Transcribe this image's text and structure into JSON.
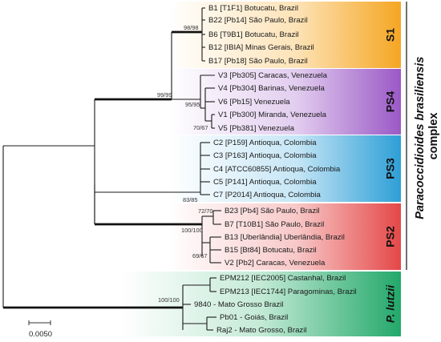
{
  "colors": {
    "S1": "#f5a623",
    "PS4": "#9b59c6",
    "PS3": "#2e9fd6",
    "PS2": "#e44848",
    "P_lutzii": "#23a86a"
  },
  "clades": [
    {
      "id": "S1",
      "label": "S1",
      "label_italic": false,
      "taxa": [
        "B1 [T1F1] Botucatu, Brazil",
        "B22 [Pb14] São Paulo, Brazil",
        "B6 [T9B1] Botucatu, Brazil",
        "B12 [IBIA] Minas Gerais, Brazil",
        "B17 [Pb18] São Paulo, Brazil"
      ]
    },
    {
      "id": "PS4",
      "label": "PS4",
      "label_italic": false,
      "taxa": [
        "V3 [Pb305] Caracas, Venezuela",
        "V4 [Pb304] Barinas, Venezuela",
        "V6 [Pb15] Venezuela",
        "V1 [Pb300] Miranda, Venezuela",
        "V5 [Pb381] Venezuela"
      ]
    },
    {
      "id": "PS3",
      "label": "PS3",
      "label_italic": false,
      "taxa": [
        "C2 [P159] Antioqua, Colombia",
        "C3 [P163] Antioqua, Colombia",
        "C4 [ATCC60855] Antioqua, Colombia",
        "C5 [P141] Antioqua, Colombia",
        "C7 [P2014] Antioqua, Colombia"
      ]
    },
    {
      "id": "PS2",
      "label": "PS2",
      "label_italic": false,
      "taxa": [
        "B23 [Pb4] São Paulo, Brazil",
        "B7 [T10B1] São Paulo, Brazil",
        "B13 [Uberlândia] Uberlândia, Brazil",
        "B15 [Bt84] Botucatu, Brazil",
        "V2 [Pb2] Caracas, Venezuela"
      ]
    },
    {
      "id": "P_lutzii",
      "label": "P. lutzii",
      "label_italic": true,
      "taxa": [
        "EPM212 [IEC2005] Castanhal, Brazil",
        "EPM213 [IEC1744] Paragominas, Brazil",
        "9840 - Mato Grosso Brazil",
        "Pb01 - Goiás, Brazil",
        "Raj2 - Mato Grosso, Brazil"
      ]
    }
  ],
  "support_values": {
    "s1_node": "98/98",
    "s1_ps4_node": "99/99",
    "ps4_inner_node": "95/95",
    "ps4_v1v5_node": "70/67",
    "ps3_node": "83/85",
    "ps2_top_node": "72/70",
    "ps2_node": "100/100",
    "ps2_inner_node": "69/67",
    "lutzii_node": "100/100"
  },
  "complex_label": {
    "italic_part": "Paracoccidioides brasiliensis",
    "plain_part": "complex"
  },
  "scale_bar": {
    "value": 0.005,
    "label": "0.0050"
  }
}
